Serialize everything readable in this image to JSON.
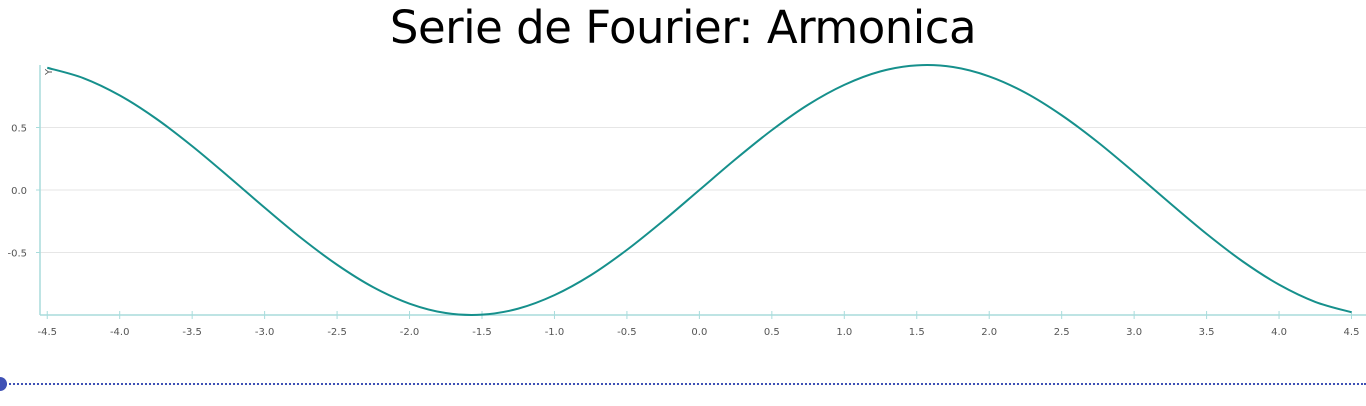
{
  "chart_data": {
    "type": "line",
    "title": "Serie de Fourier: Armonica",
    "xlabel": "",
    "ylabel": "",
    "xlim": [
      -4.55,
      4.6
    ],
    "ylim": [
      -1.0,
      1.0
    ],
    "x_ticks": [
      "-4.5",
      "-4.0",
      "-3.5",
      "-3.0",
      "-2.5",
      "-2.0",
      "-1.5",
      "-1.0",
      "-0.5",
      "0.0",
      "0.5",
      "1.0",
      "1.5",
      "2.0",
      "2.5",
      "3.0",
      "3.5",
      "4.0",
      "4.5"
    ],
    "y_ticks": [
      "-0.5",
      "0.0",
      "0.5"
    ],
    "y_axis_marker": "Y",
    "grid": "horizontal",
    "series": [
      {
        "function": "sin(x)",
        "x": [
          -4.5,
          -4.25,
          -4.0,
          -3.75,
          -3.5,
          -3.25,
          -3.0,
          -2.75,
          -2.5,
          -2.25,
          -2.0,
          -1.75,
          -1.5,
          -1.25,
          -1.0,
          -0.75,
          -0.5,
          -0.25,
          0.0,
          0.25,
          0.5,
          0.75,
          1.0,
          1.25,
          1.5,
          1.75,
          2.0,
          2.25,
          2.5,
          2.75,
          3.0,
          3.25,
          3.5,
          3.75,
          4.0,
          4.25,
          4.5
        ],
        "y": [
          0.978,
          0.895,
          0.757,
          0.572,
          0.351,
          0.108,
          -0.141,
          -0.382,
          -0.598,
          -0.778,
          -0.909,
          -0.984,
          -0.997,
          -0.949,
          -0.841,
          -0.682,
          -0.479,
          -0.247,
          0.0,
          0.247,
          0.479,
          0.682,
          0.841,
          0.949,
          0.997,
          0.984,
          0.909,
          0.778,
          0.598,
          0.382,
          0.141,
          -0.108,
          -0.351,
          -0.572,
          -0.757,
          -0.895,
          -0.978
        ]
      }
    ]
  },
  "colors": {
    "line": "#16908c",
    "axis": "#a8dcdc",
    "grid": "#e6e6e6",
    "slider": "#3f51b5"
  },
  "slider": {
    "value": 0.0
  }
}
